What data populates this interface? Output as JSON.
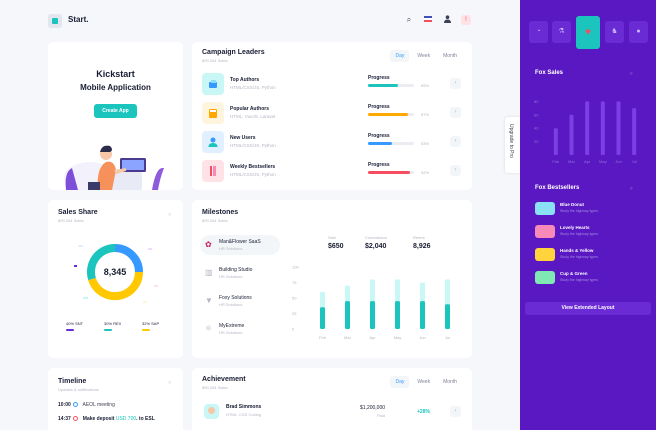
{
  "header": {
    "brand": "Start.",
    "icons": [
      "search-icon",
      "flag-icon",
      "user-icon",
      "notification-icon"
    ]
  },
  "kickstart": {
    "title": "Kickstart",
    "subtitle": "Mobile Application",
    "button": "Create App"
  },
  "campaign": {
    "title": "Campaign Leaders",
    "subtitle": "890,344 Sales",
    "tabs": [
      "Day",
      "Week",
      "Month"
    ],
    "rows": [
      {
        "title": "Top Authors",
        "sub": "HTML/CSS/JS, Python",
        "label": "Progress",
        "value": "65%",
        "pct": 65,
        "color": "#1bc5bd",
        "bg": "#c9f7f5"
      },
      {
        "title": "Popular Authors",
        "sub": "HTML, VueJS, Laravel",
        "label": "Progress",
        "value": "87%",
        "pct": 87,
        "color": "#ffa800",
        "bg": "#fff4de"
      },
      {
        "title": "New Users",
        "sub": "HTML/CSS/JS, Python",
        "label": "Progress",
        "value": "53%",
        "pct": 53,
        "color": "#3699ff",
        "bg": "#e1f0ff"
      },
      {
        "title": "Weekly Bestsellers",
        "sub": "HTML/CSS/JS, Python",
        "label": "Progress",
        "value": "92%",
        "pct": 92,
        "color": "#f64e60",
        "bg": "#ffe2e5"
      }
    ]
  },
  "sales_share": {
    "title": "Sales Share",
    "subtitle": "890,344 Sales",
    "center": "8,345",
    "legend": [
      {
        "label": "40% SNT",
        "color": "#6c2bd9"
      },
      {
        "label": "30% REX",
        "color": "#1bc5bd"
      },
      {
        "label": "32% SAP",
        "color": "#ffc800"
      }
    ]
  },
  "milestones": {
    "title": "Milestones",
    "subtitle": "890,344 Sales",
    "items": [
      {
        "title": "Man&Flower SaaS",
        "sub": "HR Solutions",
        "icon": "flower-icon"
      },
      {
        "title": "Building Studio",
        "sub": "HR Solutions",
        "icon": "building-icon"
      },
      {
        "title": "Foxy Solutions",
        "sub": "HR Solutions",
        "icon": "fox-icon"
      },
      {
        "title": "MyExtreme",
        "sub": "HR Solutions",
        "icon": "atom-icon"
      }
    ],
    "stats": [
      {
        "label": "Sale",
        "value": "$650"
      },
      {
        "label": "Commission",
        "value": "$2,040"
      },
      {
        "label": "Refers",
        "value": "8,926"
      }
    ]
  },
  "timeline": {
    "title": "Timeline",
    "subtitle": "Updates & notifications",
    "events": [
      {
        "time": "10:00",
        "text": "AEOL meeting",
        "color": "#3699ff"
      },
      {
        "time": "14:37",
        "text": "Make deposit",
        "amount": "USD 700",
        "suffix": ". to ESL",
        "color": "#f64e60"
      }
    ]
  },
  "achievement": {
    "title": "Achievement",
    "subtitle": "890,344 Sales",
    "tabs": [
      "Day",
      "Week",
      "Month"
    ],
    "person": "Brad Simmons",
    "role": "HTML, CSS Coding",
    "amount": "$1,200,000",
    "status": "Paid",
    "change": "+28%"
  },
  "upgrade": "Upgrade to Pro",
  "right_panel": {
    "tab_icons": [
      "pie-icon",
      "lab-icon",
      "heart-icon",
      "dog-icon"
    ],
    "fox_sales_title": "Fox Sales",
    "bestsellers_title": "Fox Bestsellers",
    "bestsellers": [
      {
        "name": "Blue Donut",
        "sub": "Study the highway types",
        "color": "#8ae0f5"
      },
      {
        "name": "Lovely Hearts",
        "sub": "Study the highway types",
        "color": "#f78ab9"
      },
      {
        "name": "Hands & Yellow",
        "sub": "Study the highway types",
        "color": "#ffd33c"
      },
      {
        "name": "Cup & Green",
        "sub": "Study the highway types",
        "color": "#7fe8b3"
      }
    ],
    "button": "View Extended Layout"
  },
  "colors": {
    "accent": "#1bc5bd",
    "panel": "#5a18c2",
    "primary": "#3699ff"
  },
  "chart_data": [
    {
      "type": "bar",
      "title": "",
      "categories": [
        "Feb",
        "Mar",
        "Apr",
        "May",
        "Jun",
        "Jul"
      ],
      "series": [
        {
          "values": [
            35,
            45,
            45,
            45,
            45,
            40
          ]
        },
        {
          "values": [
            60,
            70,
            80,
            80,
            75,
            80
          ]
        }
      ],
      "yticks": [
        0,
        25,
        50,
        75,
        100
      ],
      "ylim": [
        0,
        100
      ]
    },
    {
      "type": "bar",
      "title": "Fox Sales",
      "categories": [
        "Feb",
        "Mar",
        "Apr",
        "May",
        "Jun",
        "Jul"
      ],
      "values": [
        40,
        60,
        80,
        80,
        80,
        70
      ],
      "yticks": [
        20,
        40,
        60,
        80
      ],
      "ylim": [
        0,
        100
      ]
    }
  ]
}
